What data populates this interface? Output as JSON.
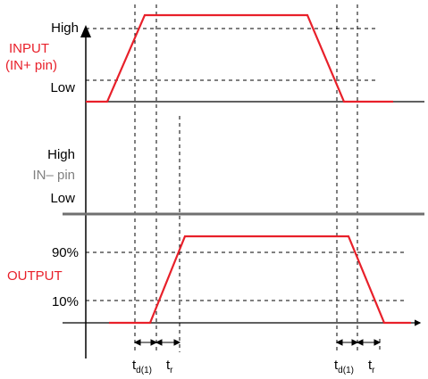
{
  "colors": {
    "signal_red": "#e8202a",
    "in_minus_gray": "#808080",
    "axis_black": "#000000",
    "in_minus_baseline_gray": "#707070"
  },
  "input_section": {
    "high_label": "High",
    "name_line1": "INPUT",
    "name_line2": "(IN+ pin)",
    "low_label": "Low"
  },
  "in_minus_section": {
    "high_label": "High",
    "name": "IN– pin",
    "low_label": "Low"
  },
  "output_section": {
    "level_90_label": "90%",
    "name": "OUTPUT",
    "level_10_label": "10%"
  },
  "timing_labels": {
    "delay_base": "t",
    "delay_sub": "d(1)",
    "rise_base": "t",
    "rise_sub": "r"
  }
}
